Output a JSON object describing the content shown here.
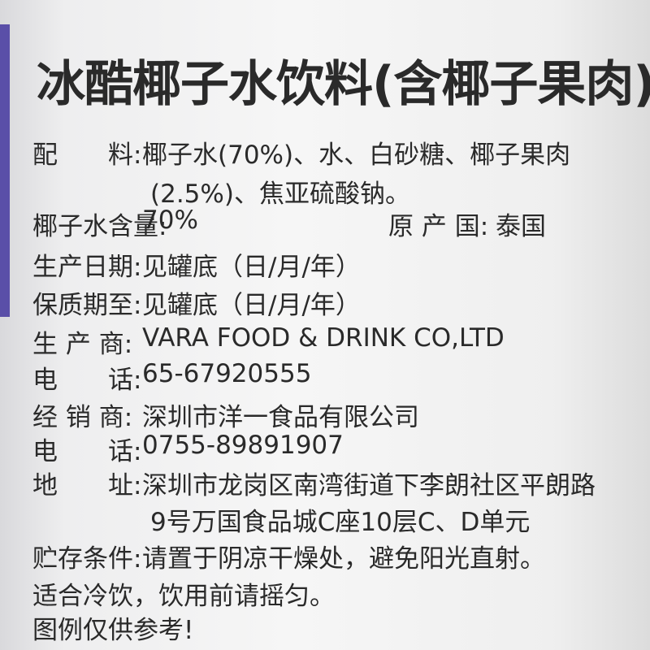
{
  "title": "冰酷椰子水饮料(含椰子果肉)",
  "rows": [
    {
      "label": "配　　料:",
      "lines": [
        "椰子水(70%)、水、白砂糖、椰子果肉",
        "(2.5%)、焦亚硫酸钠。"
      ]
    },
    {
      "label": "椰子水含量:",
      "lines": [
        "70%"
      ],
      "extra_label": "原 产 国:",
      "extra_value": "泰国"
    },
    {
      "label": "生产日期:",
      "lines": [
        "见罐底（日/月/年）"
      ]
    },
    {
      "label": "保质期至:",
      "lines": [
        "见罐底（日/月/年）"
      ]
    },
    {
      "label": "生 产 商:",
      "lines": [
        "VARA FOOD & DRINK CO,LTD"
      ]
    },
    {
      "label": "电　　话:",
      "lines": [
        "65-67920555"
      ]
    },
    {
      "label": "经 销 商:",
      "lines": [
        "深圳市洋一食品有限公司"
      ]
    },
    {
      "label": "电　　话:",
      "lines": [
        "0755-89891907"
      ]
    },
    {
      "label": "地　　址:",
      "lines": [
        "深圳市龙岗区南湾街道下李朗社区平朗路",
        "9号万国食品城C座10层C、D单元"
      ]
    },
    {
      "label": "贮存条件:",
      "lines": [
        "请置于阴凉干燥处，避免阳光直射。"
      ]
    }
  ],
  "notes": [
    "适合冷饮，饮用前请摇匀。",
    "图例仅供参考!"
  ]
}
